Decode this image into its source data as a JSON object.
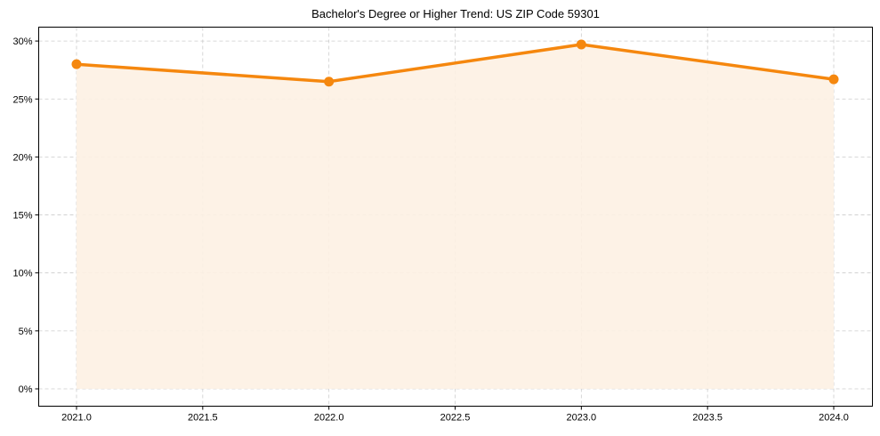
{
  "chart_data": {
    "type": "line",
    "title": "Bachelor's Degree or Higher Trend: US ZIP Code 59301",
    "xlabel": "",
    "ylabel": "",
    "x": [
      2021.0,
      2022.0,
      2023.0,
      2024.0
    ],
    "series": [
      {
        "name": "Bachelor's Degree or Higher",
        "values": [
          28.0,
          26.5,
          29.7,
          26.7
        ],
        "color": "#f5870e",
        "fill": "#fdf1e3"
      }
    ],
    "xticks": [
      "2021.0",
      "2021.5",
      "2022.0",
      "2022.5",
      "2023.0",
      "2023.5",
      "2024.0"
    ],
    "xtick_values": [
      2021.0,
      2021.5,
      2022.0,
      2022.5,
      2023.0,
      2023.5,
      2024.0
    ],
    "yticks": [
      "0%",
      "5%",
      "10%",
      "15%",
      "20%",
      "25%",
      "30%"
    ],
    "ytick_values": [
      0,
      5,
      10,
      15,
      20,
      25,
      30
    ],
    "xlim": [
      2020.85,
      2024.15
    ],
    "ylim": [
      -1.45,
      31.2
    ],
    "grid": true,
    "legend": "none"
  }
}
